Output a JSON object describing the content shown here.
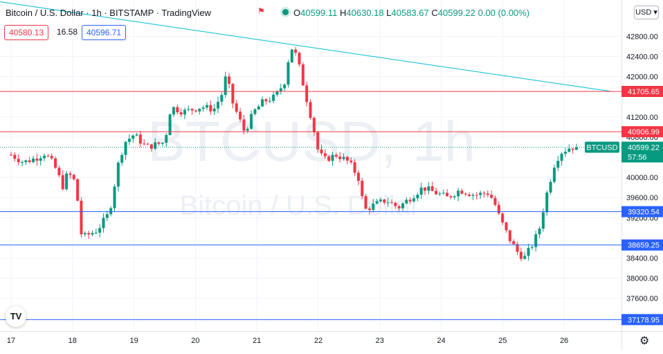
{
  "header": {
    "title": "Bitcoin / U.S. Dollar · 1h · BITSTAMP · TradingView",
    "ohlc": {
      "o_label": "O",
      "o": "40599.11",
      "h_label": "H",
      "h": "40630.18",
      "l_label": "L",
      "l": "40583.67",
      "c_label": "C",
      "c": "40599.22",
      "change": "0.00 (0.00%)"
    }
  },
  "quote": {
    "sell": "40580.13",
    "spread": "16.58",
    "buy": "40596.71"
  },
  "currency_button": "USD",
  "logo_text": "TV",
  "watermark": {
    "symbol": "BTCUSD, 1h",
    "name": "Bitcoin / U.S. Dollar"
  },
  "colors": {
    "up": "#089981",
    "down": "#f23645",
    "resistance": "#f23645",
    "support": "#2962ff",
    "trend": "#00bcd4"
  },
  "chart_data": {
    "type": "candlestick",
    "x_ticks": [
      "17",
      "18",
      "19",
      "20",
      "21",
      "22",
      "23",
      "24",
      "25",
      "26"
    ],
    "y_ticks": [
      42800,
      42400,
      42000,
      41200,
      40800,
      40000,
      39600,
      39200,
      38400,
      38000,
      37600
    ],
    "ylim": [
      36950,
      43520
    ],
    "horizontal_levels": [
      {
        "label": "41705.65",
        "value": 41705.65,
        "kind": "resistance"
      },
      {
        "label": "40906.99",
        "value": 40906.99,
        "kind": "resistance"
      },
      {
        "label": "39320.54",
        "value": 39320.54,
        "kind": "support"
      },
      {
        "label": "38659.25",
        "value": 38659.25,
        "kind": "support"
      },
      {
        "label": "37178.95",
        "value": 37178.95,
        "kind": "support"
      }
    ],
    "trend_line": {
      "points": [
        [
          16.4,
          43560
        ],
        [
          26.8,
          41700
        ]
      ]
    },
    "last_price": {
      "symbol": "BTCUSD",
      "price": "40599.22",
      "countdown": "57:56",
      "value": 40599.22
    },
    "waypoints": [
      [
        17.0,
        40450
      ],
      [
        17.2,
        40300
      ],
      [
        17.4,
        40380
      ],
      [
        17.55,
        40480
      ],
      [
        17.7,
        40250
      ],
      [
        17.85,
        39800
      ],
      [
        17.92,
        40100
      ],
      [
        18.05,
        39900
      ],
      [
        18.15,
        38800
      ],
      [
        18.4,
        38950
      ],
      [
        18.6,
        39300
      ],
      [
        18.75,
        40300
      ],
      [
        18.85,
        40700
      ],
      [
        19.0,
        40850
      ],
      [
        19.2,
        40600
      ],
      [
        19.5,
        40700
      ],
      [
        19.6,
        41400
      ],
      [
        19.8,
        41300
      ],
      [
        20.1,
        41400
      ],
      [
        20.3,
        41350
      ],
      [
        20.45,
        41700
      ],
      [
        20.5,
        42050
      ],
      [
        20.6,
        41500
      ],
      [
        20.8,
        40900
      ],
      [
        20.95,
        41300
      ],
      [
        21.1,
        41500
      ],
      [
        21.3,
        41600
      ],
      [
        21.45,
        41900
      ],
      [
        21.55,
        42600
      ],
      [
        21.65,
        42400
      ],
      [
        21.8,
        41600
      ],
      [
        21.9,
        41100
      ],
      [
        22.0,
        40500
      ],
      [
        22.1,
        40350
      ],
      [
        22.3,
        40450
      ],
      [
        22.5,
        40300
      ],
      [
        22.65,
        40000
      ],
      [
        22.75,
        39350
      ],
      [
        22.9,
        39450
      ],
      [
        23.1,
        39550
      ],
      [
        23.3,
        39400
      ],
      [
        23.5,
        39600
      ],
      [
        23.7,
        39800
      ],
      [
        23.9,
        39700
      ],
      [
        24.1,
        39600
      ],
      [
        24.3,
        39750
      ],
      [
        24.55,
        39650
      ],
      [
        24.75,
        39700
      ],
      [
        24.85,
        39550
      ],
      [
        24.95,
        39200
      ],
      [
        25.1,
        38800
      ],
      [
        25.25,
        38500
      ],
      [
        25.35,
        38400
      ],
      [
        25.5,
        38700
      ],
      [
        25.6,
        39000
      ],
      [
        25.7,
        39600
      ],
      [
        25.85,
        40300
      ],
      [
        25.95,
        40500
      ],
      [
        26.1,
        40600
      ],
      [
        26.2,
        40599
      ]
    ]
  }
}
